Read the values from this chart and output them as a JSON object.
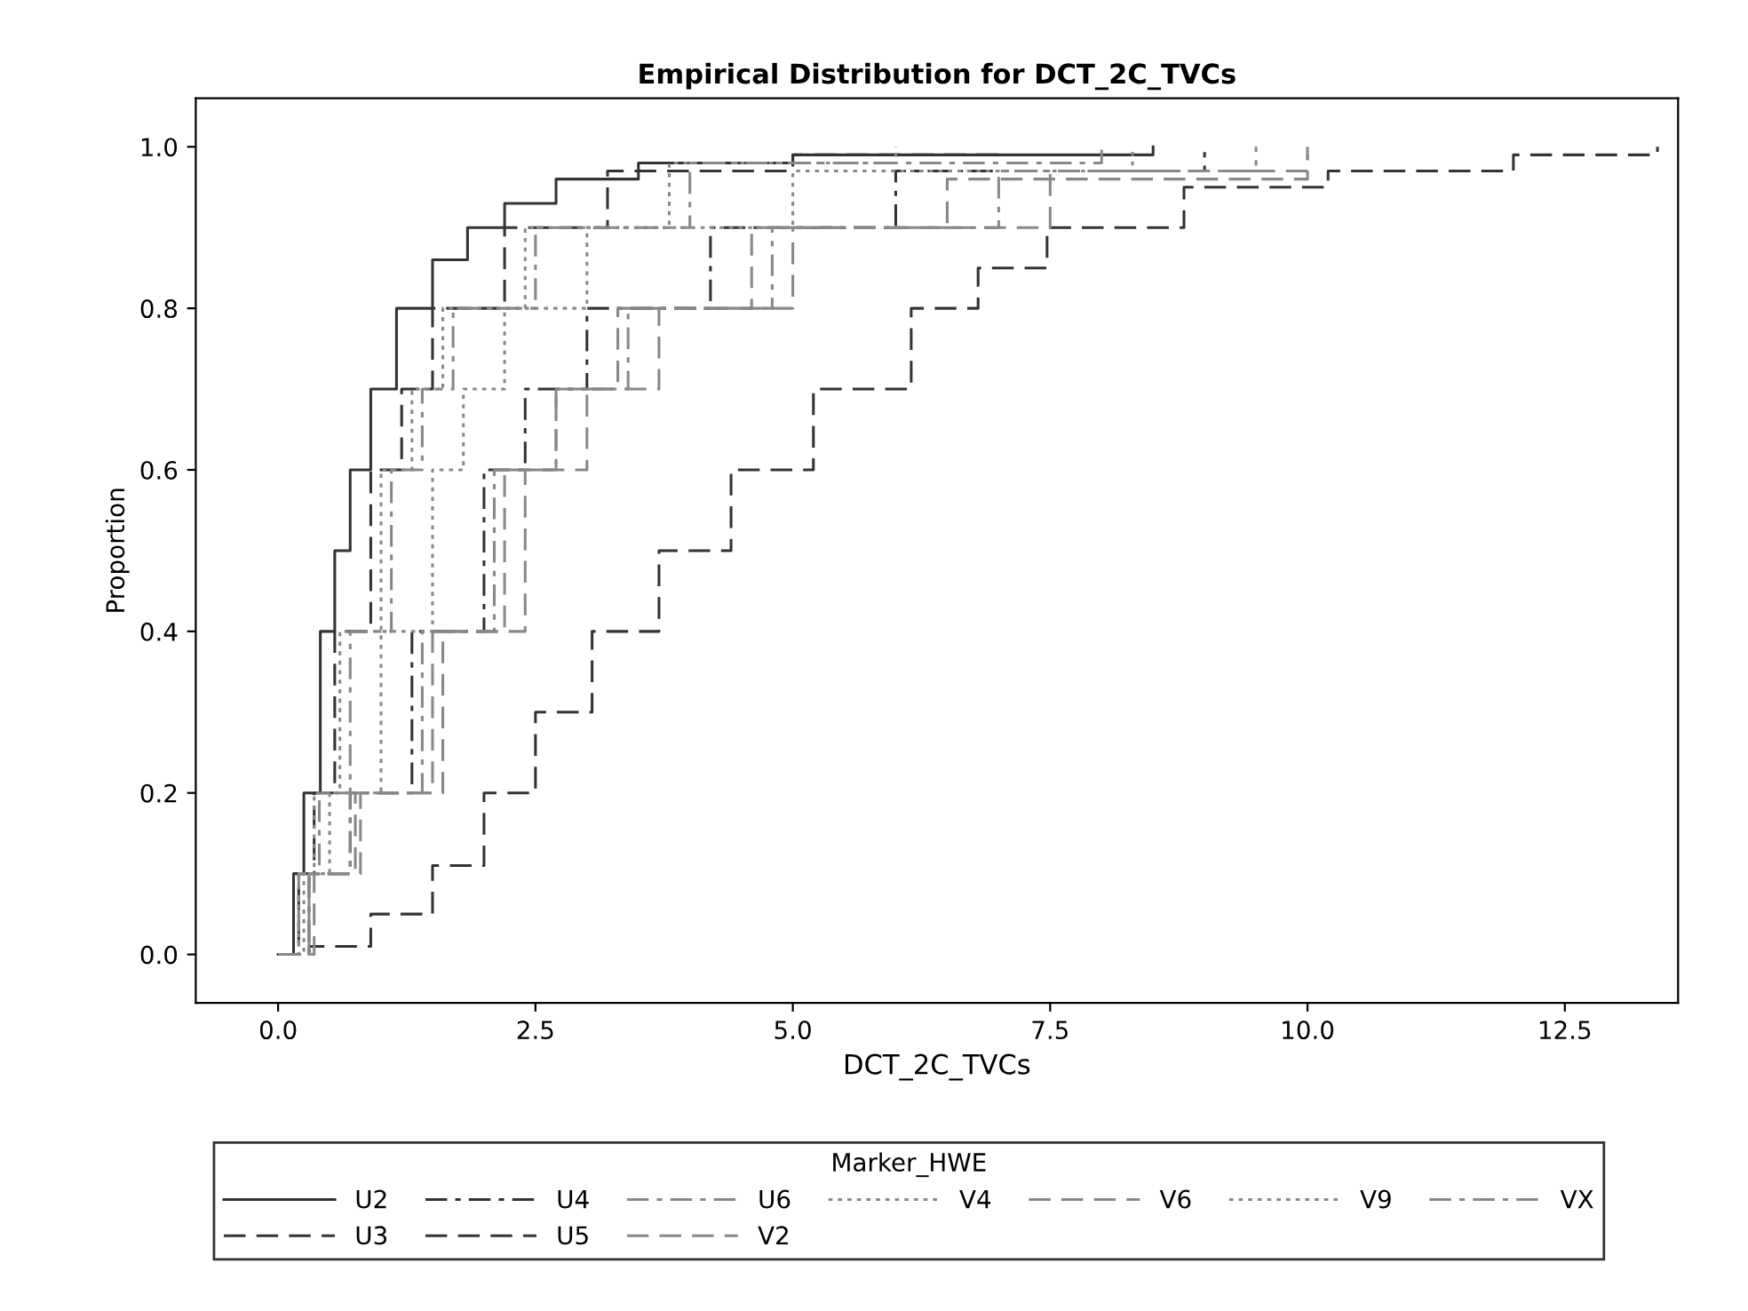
{
  "chart_data": {
    "type": "step",
    "title": "Empirical Distribution for DCT_2C_TVCs",
    "xlabel": "DCT_2C_TVCs",
    "ylabel": "Proportion",
    "legend_title": "Marker_HWE",
    "legend": "bottom",
    "grid": false,
    "xlim": [
      -0.8,
      13.6
    ],
    "ylim": [
      -0.06,
      1.06
    ],
    "xticks": [
      {
        "value": 0,
        "label": "0.0"
      },
      {
        "value": 2.5,
        "label": "2.5"
      },
      {
        "value": 5,
        "label": "5.0"
      },
      {
        "value": 7.5,
        "label": "7.5"
      },
      {
        "value": 10,
        "label": "10.0"
      },
      {
        "value": 12.5,
        "label": "12.5"
      }
    ],
    "yticks": [
      {
        "value": 0,
        "label": "0.0"
      },
      {
        "value": 0.2,
        "label": "0.2"
      },
      {
        "value": 0.4,
        "label": "0.4"
      },
      {
        "value": 0.6,
        "label": "0.6"
      },
      {
        "value": 0.8,
        "label": "0.8"
      },
      {
        "value": 1,
        "label": "1.0"
      }
    ],
    "series": [
      {
        "name": "U2",
        "color": "#333333",
        "line_style": "solid",
        "x": [
          0,
          0.15,
          0.25,
          0.41,
          0.55,
          0.7,
          0.9,
          1.15,
          1.5,
          1.84,
          2.2,
          2.7,
          3.5,
          5,
          8.5
        ],
        "values": [
          0,
          0.1,
          0.2,
          0.4,
          0.5,
          0.6,
          0.7,
          0.8,
          0.86,
          0.9,
          0.93,
          0.96,
          0.98,
          0.99,
          1.0
        ]
      },
      {
        "name": "U3",
        "color": "#333333",
        "line_style": "dashed",
        "x": [
          0,
          0.2,
          0.35,
          0.55,
          0.9,
          1.2,
          1.5,
          2.2,
          3.2,
          5,
          7
        ],
        "values": [
          0,
          0.1,
          0.2,
          0.4,
          0.6,
          0.7,
          0.8,
          0.9,
          0.97,
          0.99,
          1.0
        ]
      },
      {
        "name": "U4",
        "color": "#333333",
        "line_style": "dashdot",
        "x": [
          0,
          0.3,
          0.7,
          1.3,
          2.0,
          2.4,
          3.0,
          4.2,
          6,
          9
        ],
        "values": [
          0,
          0.1,
          0.2,
          0.4,
          0.6,
          0.7,
          0.8,
          0.9,
          0.97,
          1.0
        ]
      },
      {
        "name": "U5",
        "color": "#333333",
        "line_style": "dashed",
        "x": [
          0,
          0.3,
          0.9,
          1.5,
          2.0,
          2.5,
          3.05,
          3.7,
          4.4,
          5.2,
          6.15,
          6.8,
          7.47,
          8.8,
          10.2,
          12,
          13.4
        ],
        "values": [
          0,
          0.01,
          0.05,
          0.11,
          0.2,
          0.3,
          0.4,
          0.5,
          0.6,
          0.7,
          0.8,
          0.85,
          0.9,
          0.95,
          0.97,
          0.99,
          1.0
        ]
      },
      {
        "name": "U6",
        "color": "#888888",
        "line_style": "dashdot",
        "x": [
          0,
          0.2,
          0.4,
          0.7,
          1.1,
          1.4,
          1.7,
          2.5,
          4,
          8
        ],
        "values": [
          0,
          0.1,
          0.2,
          0.4,
          0.6,
          0.7,
          0.8,
          0.9,
          0.98,
          1.0
        ]
      },
      {
        "name": "V2",
        "color": "#888888",
        "line_style": "dashed",
        "x": [
          0,
          0.35,
          0.8,
          1.6,
          2.4,
          3.0,
          3.7,
          5,
          7.5,
          10
        ],
        "values": [
          0,
          0.1,
          0.2,
          0.4,
          0.6,
          0.7,
          0.8,
          0.9,
          0.97,
          1.0
        ]
      },
      {
        "name": "V4",
        "color": "#888888",
        "line_style": "dotted",
        "x": [
          0,
          0.25,
          0.5,
          1.0,
          1.5,
          1.8,
          2.2,
          3.0,
          5,
          8.3
        ],
        "values": [
          0,
          0.1,
          0.2,
          0.4,
          0.6,
          0.7,
          0.8,
          0.9,
          0.97,
          1.0
        ]
      },
      {
        "name": "V6",
        "color": "#888888",
        "line_style": "dashed",
        "x": [
          0,
          0.3,
          0.75,
          1.5,
          2.2,
          2.7,
          3.3,
          4.6,
          6.5,
          10
        ],
        "values": [
          0,
          0.1,
          0.2,
          0.4,
          0.6,
          0.7,
          0.8,
          0.9,
          0.96,
          0.99
        ]
      },
      {
        "name": "V9",
        "color": "#888888",
        "line_style": "dotted",
        "x": [
          0,
          0.2,
          0.35,
          0.6,
          1.0,
          1.3,
          1.6,
          2.4,
          3.8,
          6
        ],
        "values": [
          0,
          0.1,
          0.2,
          0.4,
          0.6,
          0.7,
          0.8,
          0.9,
          0.98,
          1.0
        ]
      },
      {
        "name": "VX",
        "color": "#888888",
        "line_style": "dashdot",
        "x": [
          0,
          0.3,
          0.7,
          1.4,
          2.1,
          2.7,
          3.4,
          4.8,
          7,
          9.5
        ],
        "values": [
          0,
          0.1,
          0.2,
          0.4,
          0.6,
          0.7,
          0.8,
          0.9,
          0.97,
          1.0
        ]
      }
    ]
  }
}
